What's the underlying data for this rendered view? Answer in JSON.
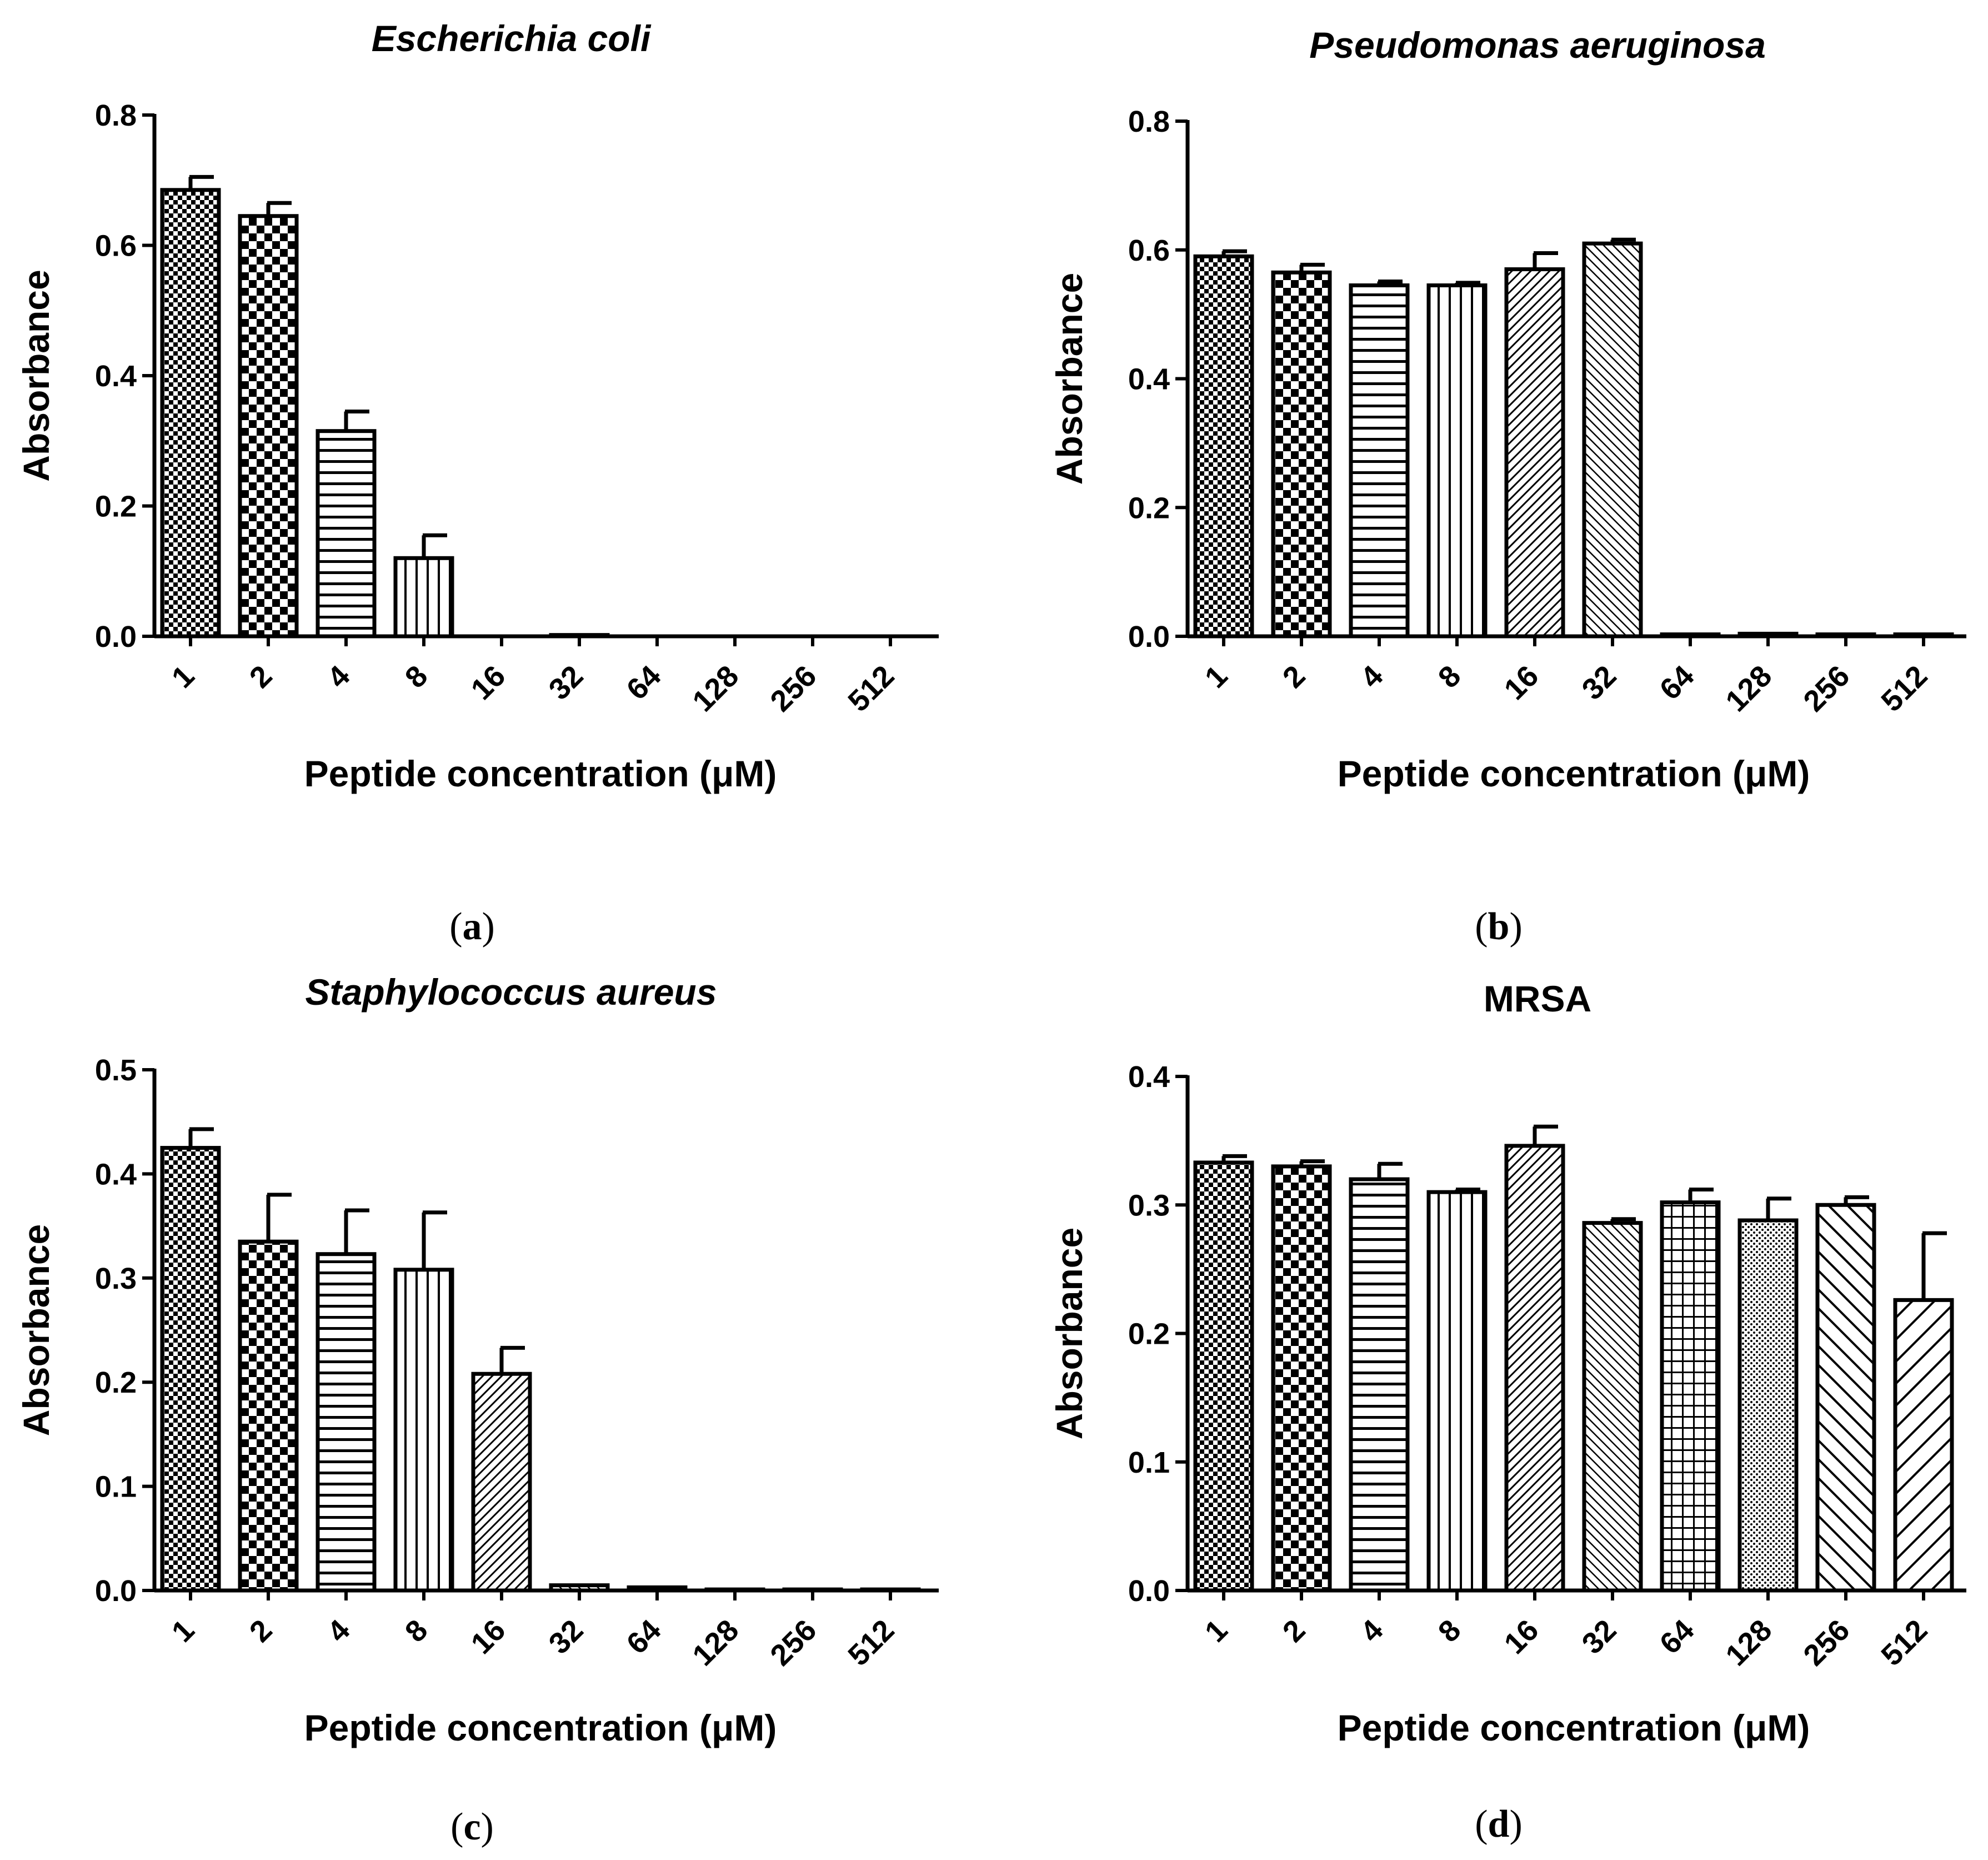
{
  "figure": {
    "panel_labels": [
      "a",
      "b",
      "c",
      "d"
    ]
  },
  "chart_data": [
    {
      "type": "bar",
      "title": "Escherichia coli",
      "title_italic": true,
      "panel": "a",
      "xlabel": "Peptide concentration (μM)",
      "ylabel": "Absorbance",
      "categories": [
        "1",
        "2",
        "4",
        "8",
        "16",
        "32",
        "64",
        "128",
        "256",
        "512"
      ],
      "values": [
        0.685,
        0.645,
        0.315,
        0.12,
        0.0,
        0.002,
        0.0,
        0.0,
        0.0,
        0.0
      ],
      "errors": [
        0.02,
        0.02,
        0.03,
        0.035,
        0.0,
        0.0,
        0.0,
        0.0,
        0.0,
        0.0
      ],
      "ylim": [
        0,
        0.8
      ],
      "yticks": [
        "0.0",
        "0.2",
        "0.4",
        "0.6",
        "0.8"
      ],
      "ytick_values": [
        0,
        0.2,
        0.4,
        0.6,
        0.8
      ]
    },
    {
      "type": "bar",
      "title": "Pseudomonas aeruginosa",
      "title_italic": true,
      "panel": "b",
      "xlabel": "Peptide concentration (μM)",
      "ylabel": "Absorbance",
      "categories": [
        "1",
        "2",
        "4",
        "8",
        "16",
        "32",
        "64",
        "128",
        "256",
        "512"
      ],
      "values": [
        0.59,
        0.565,
        0.545,
        0.545,
        0.57,
        0.61,
        0.003,
        0.004,
        0.003,
        0.003
      ],
      "errors": [
        0.008,
        0.012,
        0.006,
        0.004,
        0.025,
        0.006,
        0.0,
        0.0,
        0.0,
        0.0
      ],
      "ylim": [
        0,
        0.8
      ],
      "yticks": [
        "0.0",
        "0.2",
        "0.4",
        "0.6",
        "0.8"
      ],
      "ytick_values": [
        0,
        0.2,
        0.4,
        0.6,
        0.8
      ]
    },
    {
      "type": "bar",
      "title": "Staphylococcus aureus",
      "title_italic": true,
      "panel": "c",
      "xlabel": "Peptide concentration (μM)",
      "ylabel": "Absorbance",
      "categories": [
        "1",
        "2",
        "4",
        "8",
        "16",
        "32",
        "64",
        "128",
        "256",
        "512"
      ],
      "values": [
        0.425,
        0.335,
        0.323,
        0.308,
        0.208,
        0.005,
        0.003,
        0.001,
        0.001,
        0.001
      ],
      "errors": [
        0.018,
        0.045,
        0.042,
        0.055,
        0.025,
        0.0,
        0.0,
        0.0,
        0.0,
        0.0
      ],
      "ylim": [
        0,
        0.5
      ],
      "yticks": [
        "0.0",
        "0.1",
        "0.2",
        "0.3",
        "0.4",
        "0.5"
      ],
      "ytick_values": [
        0,
        0.1,
        0.2,
        0.3,
        0.4,
        0.5
      ]
    },
    {
      "type": "bar",
      "title": "MRSA",
      "title_italic": false,
      "panel": "d",
      "xlabel": "Peptide concentration (μM)",
      "ylabel": "Absorbance",
      "categories": [
        "1",
        "2",
        "4",
        "8",
        "16",
        "32",
        "64",
        "128",
        "256",
        "512"
      ],
      "values": [
        0.333,
        0.33,
        0.32,
        0.31,
        0.346,
        0.286,
        0.302,
        0.288,
        0.3,
        0.226
      ],
      "errors": [
        0.005,
        0.004,
        0.012,
        0.002,
        0.015,
        0.003,
        0.01,
        0.017,
        0.006,
        0.052
      ],
      "ylim": [
        0,
        0.4
      ],
      "yticks": [
        "0.0",
        "0.1",
        "0.2",
        "0.3",
        "0.4"
      ],
      "ytick_values": [
        0,
        0.1,
        0.2,
        0.3,
        0.4
      ]
    }
  ]
}
